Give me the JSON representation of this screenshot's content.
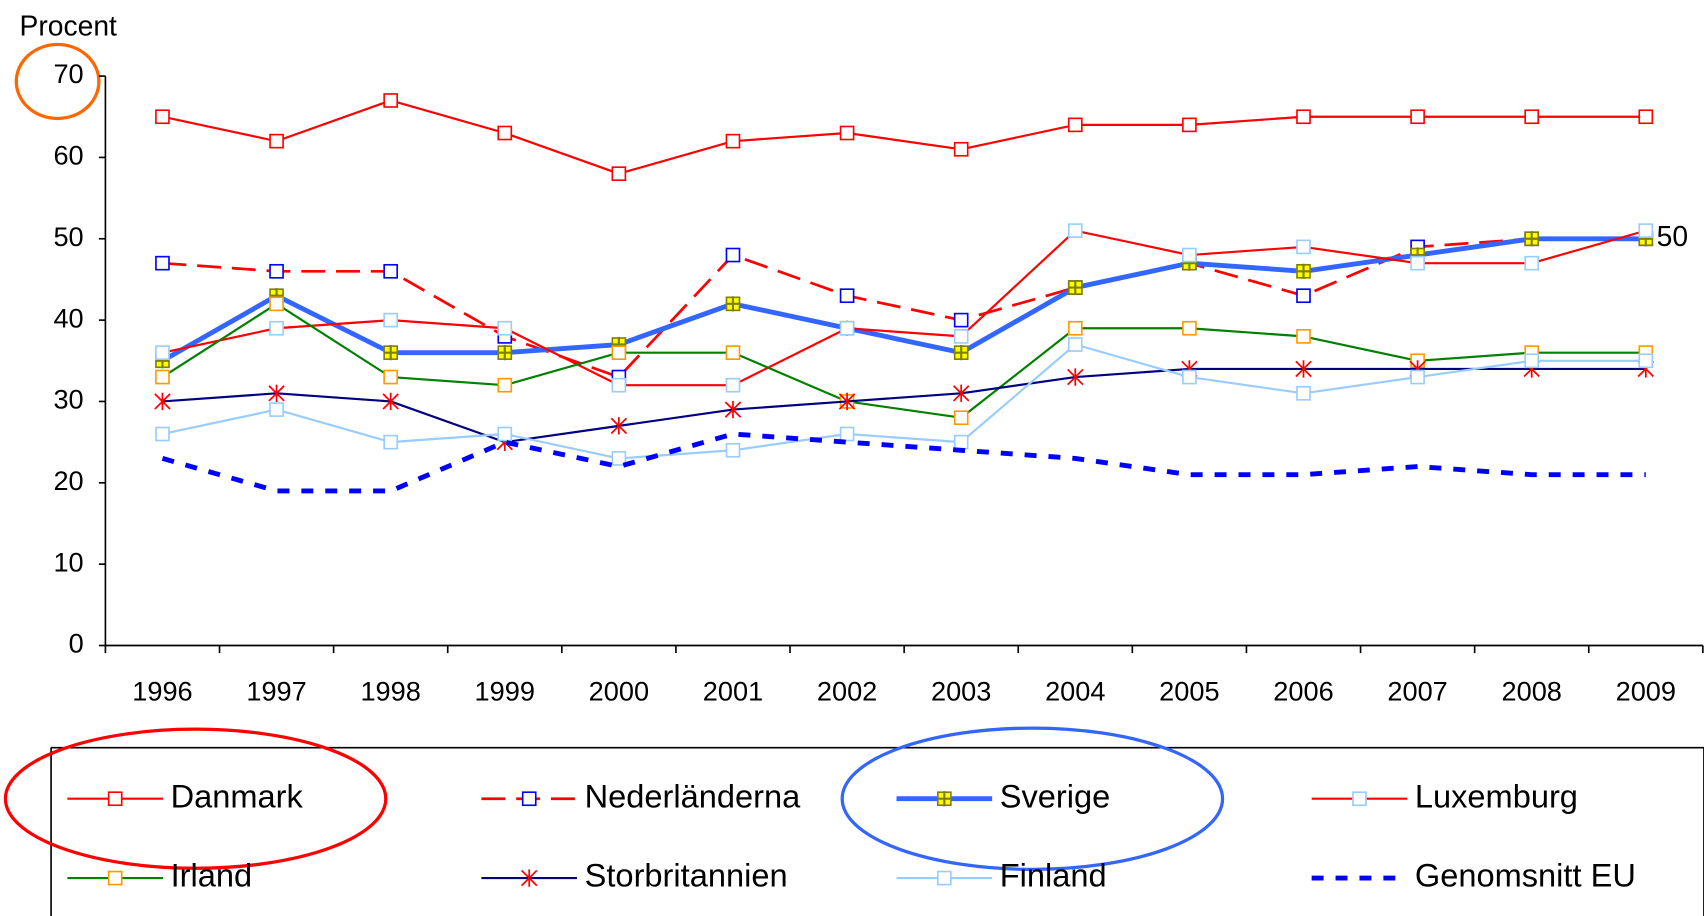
{
  "chart_data": {
    "type": "line",
    "ylabel": "Procent",
    "categories": [
      "1996",
      "1997",
      "1998",
      "1999",
      "2000",
      "2001",
      "2002",
      "2003",
      "2004",
      "2005",
      "2006",
      "2007",
      "2008",
      "2009"
    ],
    "ylim": [
      0,
      70
    ],
    "yticks": [
      0,
      10,
      20,
      30,
      40,
      50,
      60,
      70
    ],
    "grid": false,
    "legend": "bottom",
    "series": [
      {
        "name": "Danmark",
        "color": "#ff0000",
        "marker": "square",
        "marker_color": "#ff0000",
        "marker_fill": "#ffffff",
        "dash": "solid",
        "line_width": 2,
        "values": [
          65,
          62,
          67,
          63,
          58,
          62,
          63,
          61,
          64,
          64,
          65,
          65,
          65,
          65
        ]
      },
      {
        "name": "Nederländerna",
        "color": "#ff0000",
        "marker": "square",
        "marker_color": "#0000ff",
        "marker_fill": "#ffffff",
        "dash": "dashed",
        "line_width": 2.5,
        "values": [
          47,
          46,
          46,
          38,
          33,
          48,
          43,
          40,
          44,
          47,
          43,
          49,
          50,
          50
        ]
      },
      {
        "name": "Sverige",
        "color": "#3366ff",
        "marker": "plus-square",
        "marker_color": "#808000",
        "marker_fill": "#ffff00",
        "dash": "solid",
        "line_width": 4.5,
        "values": [
          35,
          43,
          36,
          36,
          37,
          42,
          39,
          36,
          44,
          47,
          46,
          48,
          50,
          50
        ]
      },
      {
        "name": "Luxemburg",
        "color": "#ff0000",
        "marker": "square",
        "marker_color": "#99ccff",
        "marker_fill": "#ffffff",
        "dash": "solid",
        "line_width": 2,
        "values": [
          36,
          39,
          40,
          39,
          32,
          32,
          39,
          38,
          51,
          48,
          49,
          47,
          47,
          51
        ]
      },
      {
        "name": "Irland",
        "color": "#008000",
        "marker": "square",
        "marker_color": "#ff9900",
        "marker_fill": "#ffffff",
        "dash": "solid",
        "line_width": 2,
        "values": [
          33,
          42,
          33,
          32,
          36,
          36,
          30,
          28,
          39,
          39,
          38,
          35,
          36,
          36
        ]
      },
      {
        "name": "Storbritannien",
        "color": "#000080",
        "marker": "asterisk",
        "marker_color": "#ff0000",
        "marker_fill": "#ffffff",
        "dash": "solid",
        "line_width": 2,
        "values": [
          30,
          31,
          30,
          25,
          27,
          29,
          30,
          31,
          33,
          34,
          34,
          34,
          34,
          34
        ]
      },
      {
        "name": "Finland",
        "color": "#99ccff",
        "marker": "square",
        "marker_color": "#99ccff",
        "marker_fill": "#ffffff",
        "dash": "solid",
        "line_width": 2,
        "values": [
          26,
          29,
          25,
          26,
          23,
          24,
          26,
          25,
          37,
          33,
          31,
          33,
          35,
          35
        ]
      },
      {
        "name": "Genomsnitt EU",
        "color": "#0000ff",
        "marker": "none",
        "marker_color": "#0000ff",
        "marker_fill": "#0000ff",
        "dash": "dotted",
        "line_width": 4.5,
        "values": [
          23,
          19,
          19,
          25,
          22,
          26,
          25,
          24,
          23,
          21,
          21,
          22,
          21,
          21
        ]
      }
    ],
    "annotations": [
      {
        "text": "50",
        "x": "2009",
        "y": 50
      }
    ]
  }
}
